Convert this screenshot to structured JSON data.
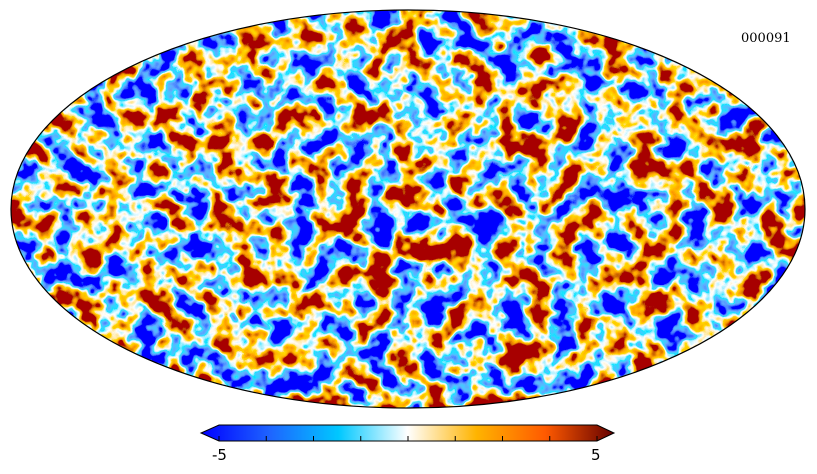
{
  "map": {
    "id_label": "000091",
    "projection": "mollweide",
    "colormap": [
      "#0000ff",
      "#1e64ff",
      "#00c8ff",
      "#ffffff",
      "#ffb400",
      "#ff5a00",
      "#640000"
    ]
  },
  "colorbar": {
    "min_label": "-5",
    "max_label": "5",
    "min": -5,
    "max": 5,
    "tick_count": 9
  }
}
